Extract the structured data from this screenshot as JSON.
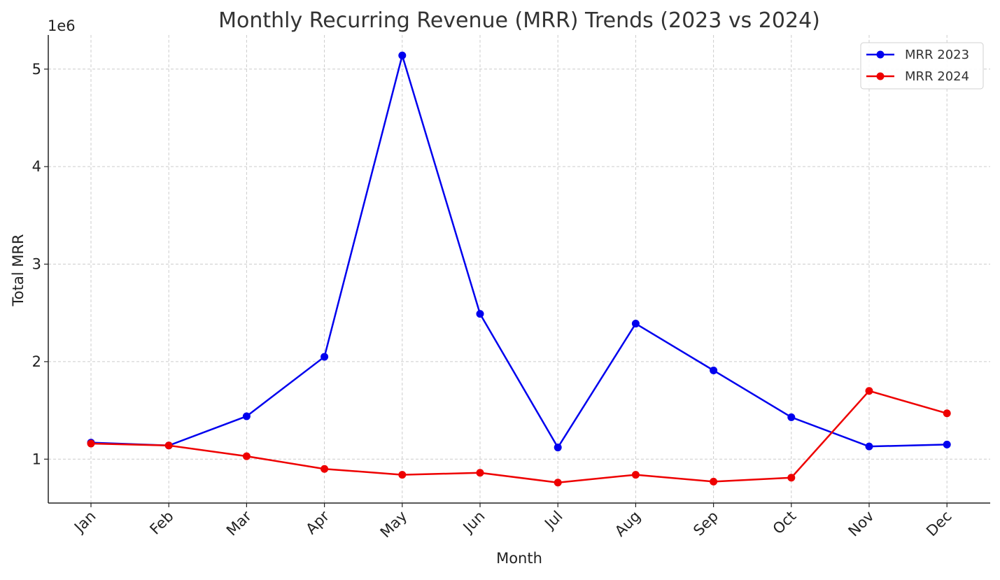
{
  "chart_data": {
    "type": "line",
    "title": "Monthly Recurring Revenue (MRR) Trends (2023 vs 2024)",
    "xlabel": "Month",
    "ylabel": "Total MRR",
    "y_scale_label": "1e6",
    "categories": [
      "Jan",
      "Feb",
      "Mar",
      "Apr",
      "May",
      "Jun",
      "Jul",
      "Aug",
      "Sep",
      "Oct",
      "Nov",
      "Dec"
    ],
    "y_ticks": [
      1,
      2,
      3,
      4,
      5
    ],
    "y_tick_labels": [
      "1",
      "2",
      "3",
      "4",
      "5"
    ],
    "ylim": [
      0.55,
      5.35
    ],
    "y_unit_multiplier": 1000000,
    "grid": true,
    "legend_position": "top-right",
    "series": [
      {
        "name": "MRR 2023",
        "color": "#0000ee",
        "marker": "circle",
        "values": [
          1.17,
          1.14,
          1.44,
          2.05,
          5.14,
          2.49,
          1.12,
          2.39,
          1.91,
          1.43,
          1.13,
          1.15
        ]
      },
      {
        "name": "MRR 2024",
        "color": "#ee0000",
        "marker": "circle",
        "values": [
          1.16,
          1.14,
          1.03,
          0.9,
          0.84,
          0.86,
          0.76,
          0.84,
          0.77,
          0.81,
          1.7,
          1.47
        ]
      }
    ]
  }
}
